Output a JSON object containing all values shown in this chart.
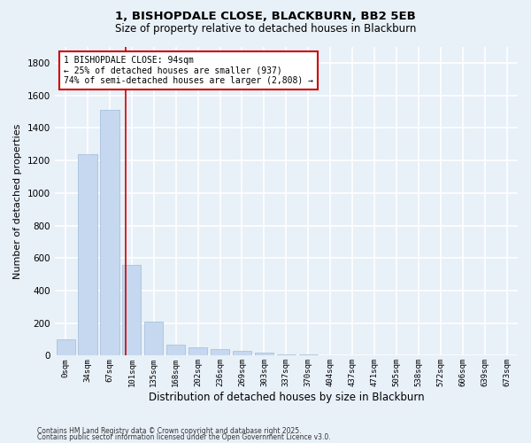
{
  "title1": "1, BISHOPDALE CLOSE, BLACKBURN, BB2 5EB",
  "title2": "Size of property relative to detached houses in Blackburn",
  "xlabel": "Distribution of detached houses by size in Blackburn",
  "ylabel": "Number of detached properties",
  "categories": [
    "0sqm",
    "34sqm",
    "67sqm",
    "101sqm",
    "135sqm",
    "168sqm",
    "202sqm",
    "236sqm",
    "269sqm",
    "303sqm",
    "337sqm",
    "370sqm",
    "404sqm",
    "437sqm",
    "471sqm",
    "505sqm",
    "538sqm",
    "572sqm",
    "606sqm",
    "639sqm",
    "673sqm"
  ],
  "values": [
    100,
    1240,
    1510,
    560,
    210,
    65,
    50,
    40,
    30,
    20,
    10,
    5,
    4,
    3,
    2,
    2,
    1,
    1,
    0,
    0,
    0
  ],
  "bar_color": "#c5d8ef",
  "bar_edge_color": "#a0bcd8",
  "bar_width": 0.85,
  "ylim": [
    0,
    1900
  ],
  "yticks": [
    0,
    200,
    400,
    600,
    800,
    1000,
    1200,
    1400,
    1600,
    1800
  ],
  "vline_x": 2.72,
  "annotation_text": "1 BISHOPDALE CLOSE: 94sqm\n← 25% of detached houses are smaller (937)\n74% of semi-detached houses are larger (2,808) →",
  "annotation_box_color": "#ffffff",
  "annotation_box_edge_color": "#cc0000",
  "background_color": "#e8f0f8",
  "grid_color": "#ffffff",
  "footnote1": "Contains HM Land Registry data © Crown copyright and database right 2025.",
  "footnote2": "Contains public sector information licensed under the Open Government Licence v3.0."
}
